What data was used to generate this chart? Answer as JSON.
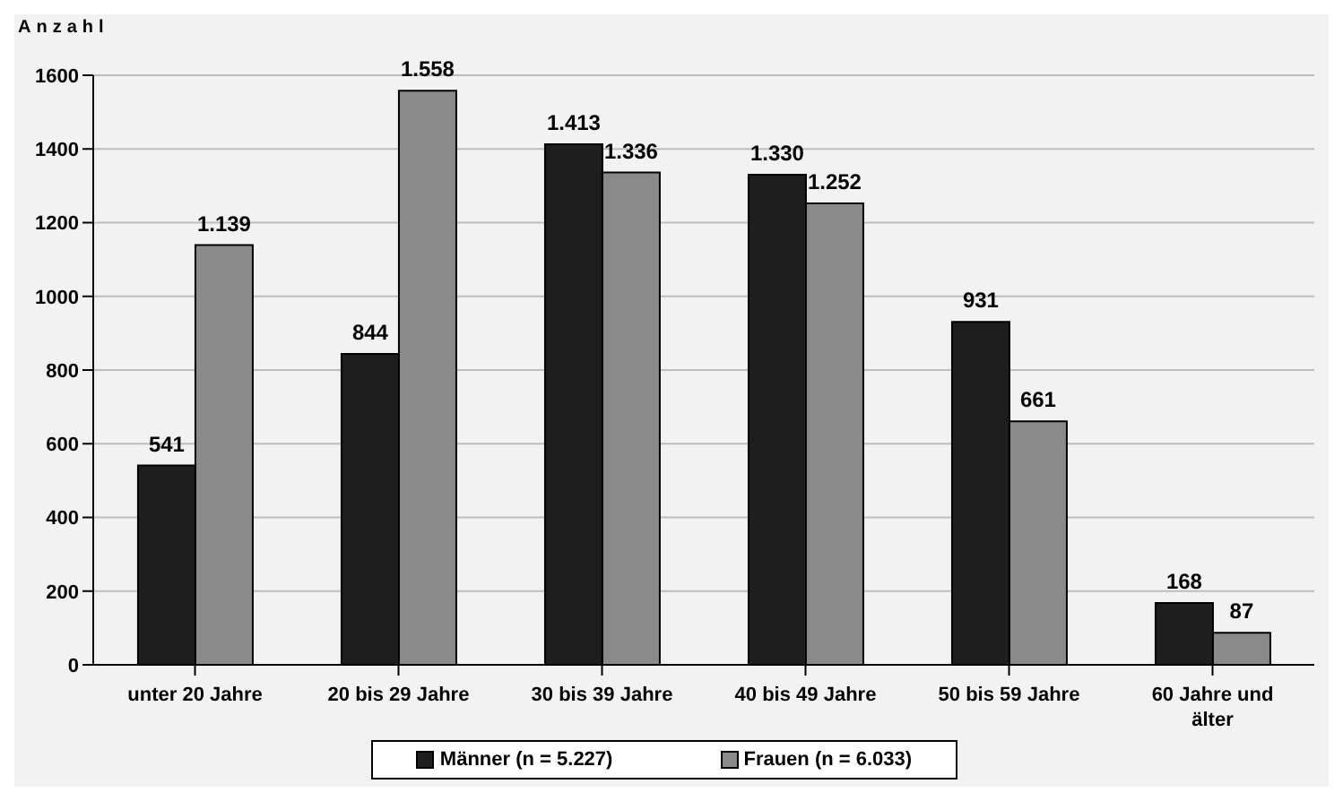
{
  "chart_data": {
    "type": "bar",
    "ylabel": "Anzahl",
    "categories": [
      "unter 20 Jahre",
      "20 bis 29 Jahre",
      "30 bis 39 Jahre",
      "40 bis 49 Jahre",
      "50 bis 59 Jahre",
      "60 Jahre und älter"
    ],
    "series": [
      {
        "name": "Männer (n = 5.227)",
        "color": "#1e1e1e",
        "values": [
          541,
          844,
          1413,
          1330,
          931,
          168
        ],
        "value_labels": [
          "541",
          "844",
          "1.413",
          "1.330",
          "931",
          "168"
        ]
      },
      {
        "name": "Frauen (n = 6.033)",
        "color": "#8a8a8a",
        "values": [
          1139,
          1558,
          1336,
          1252,
          661,
          87
        ],
        "value_labels": [
          "1.139",
          "1.558",
          "1.336",
          "1.252",
          "661",
          "87"
        ]
      }
    ],
    "ylim": [
      0,
      1600
    ],
    "yticks": [
      0,
      200,
      400,
      600,
      800,
      1000,
      1200,
      1400,
      1600
    ],
    "grid": "y",
    "legend": "bottom"
  }
}
